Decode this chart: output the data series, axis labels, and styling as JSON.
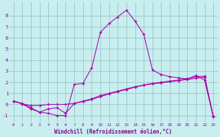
{
  "bg_color": "#c8eef0",
  "grid_color": "#a0c8c8",
  "line_color": "#aa00aa",
  "xlabel": "Windchill (Refroidissement éolien,°C)",
  "xlim": [
    -0.5,
    23.5
  ],
  "ylim": [
    -1.6,
    9.2
  ],
  "yticks": [
    -1,
    0,
    1,
    2,
    3,
    4,
    5,
    6,
    7,
    8
  ],
  "xticks": [
    0,
    1,
    2,
    3,
    4,
    5,
    6,
    7,
    8,
    9,
    10,
    11,
    12,
    13,
    14,
    15,
    16,
    17,
    18,
    19,
    20,
    21,
    22,
    23
  ],
  "line1_x": [
    0,
    1,
    2,
    3,
    4,
    5,
    6,
    7,
    8,
    9,
    10,
    11,
    12,
    13,
    14,
    15,
    16,
    17,
    18,
    19,
    20,
    21,
    22,
    23
  ],
  "line1_y": [
    0.3,
    0.1,
    -0.3,
    -0.7,
    -0.8,
    -1.0,
    -1.0,
    1.8,
    1.9,
    3.3,
    6.5,
    7.3,
    7.9,
    8.5,
    7.5,
    6.3,
    3.1,
    2.7,
    2.5,
    2.4,
    2.3,
    2.6,
    2.2,
    -1.1
  ],
  "line2_x": [
    0,
    1,
    2,
    3,
    4,
    5,
    6,
    7,
    8,
    9,
    10,
    11,
    12,
    13,
    14,
    15,
    16,
    17,
    18,
    19,
    20,
    21,
    22,
    23
  ],
  "line2_y": [
    0.3,
    0.05,
    -0.1,
    -0.1,
    0.0,
    0.0,
    0.0,
    0.1,
    0.3,
    0.5,
    0.8,
    1.0,
    1.2,
    1.4,
    1.6,
    1.75,
    1.85,
    1.95,
    2.05,
    2.15,
    2.25,
    2.35,
    2.45,
    -1.1
  ],
  "line3_x": [
    0,
    1,
    2,
    3,
    4,
    5,
    6,
    7,
    8,
    9,
    10,
    11,
    12,
    13,
    14,
    15,
    16,
    17,
    18,
    19,
    20,
    21,
    22,
    23
  ],
  "line3_y": [
    0.3,
    0.05,
    -0.4,
    -0.7,
    -0.4,
    -0.3,
    -0.8,
    0.1,
    0.25,
    0.45,
    0.7,
    0.95,
    1.15,
    1.35,
    1.55,
    1.75,
    1.9,
    2.0,
    2.1,
    2.2,
    2.3,
    2.5,
    2.55,
    -1.1
  ]
}
